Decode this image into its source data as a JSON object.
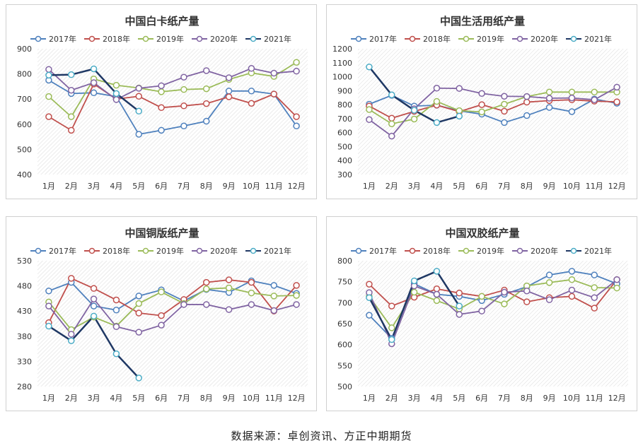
{
  "source": "数据来源：卓创资讯、方正中期期货",
  "months": [
    "1月",
    "2月",
    "3月",
    "4月",
    "5月",
    "6月",
    "7月",
    "8月",
    "9月",
    "10月",
    "11月",
    "12月"
  ],
  "series_colors": [
    "#4f81bd",
    "#c0504d",
    "#9bbb59",
    "#8064a2",
    "#1f3864"
  ],
  "series_outline_colors": [
    "#4f81bd",
    "#c0504d",
    "#9bbb59",
    "#8064a2",
    "#4bacc6"
  ],
  "chart_data": [
    {
      "type": "line",
      "title": "中国白卡纸产量",
      "ylim": [
        400,
        900
      ],
      "yticks": [
        400,
        500,
        600,
        700,
        800,
        900
      ],
      "grid": false,
      "legend": "top",
      "series": [
        {
          "name": "2017年",
          "values": [
            775,
            722,
            725,
            710,
            560,
            576,
            593,
            612,
            732,
            732,
            720,
            593
          ]
        },
        {
          "name": "2018年",
          "values": [
            630,
            576,
            760,
            700,
            711,
            666,
            673,
            682,
            709,
            683,
            720,
            630
          ]
        },
        {
          "name": "2019年",
          "values": [
            710,
            630,
            780,
            755,
            744,
            729,
            738,
            741,
            778,
            804,
            790,
            846
          ]
        },
        {
          "name": "2020年",
          "values": [
            818,
            735,
            765,
            698,
            743,
            753,
            787,
            813,
            785,
            822,
            803,
            811
          ]
        },
        {
          "name": "2021年",
          "values": [
            795,
            797,
            820,
            722,
            652,
            null,
            null,
            null,
            null,
            null,
            null,
            null
          ]
        }
      ]
    },
    {
      "type": "line",
      "title": "中国生活用纸产量",
      "ylim": [
        300,
        1200
      ],
      "yticks": [
        300,
        400,
        500,
        600,
        700,
        800,
        900,
        1000,
        1100,
        1200
      ],
      "grid": false,
      "legend": "top",
      "series": [
        {
          "name": "2017年",
          "values": [
            803,
            867,
            790,
            796,
            756,
            732,
            672,
            722,
            780,
            750,
            840,
            810
          ]
        },
        {
          "name": "2018年",
          "values": [
            790,
            703,
            752,
            797,
            750,
            800,
            753,
            818,
            829,
            835,
            825,
            820
          ]
        },
        {
          "name": "2019年",
          "values": [
            765,
            663,
            697,
            823,
            757,
            748,
            803,
            858,
            890,
            890,
            890,
            890
          ]
        },
        {
          "name": "2020年",
          "values": [
            693,
            575,
            770,
            918,
            916,
            880,
            860,
            858,
            846,
            848,
            835,
            925
          ]
        },
        {
          "name": "2021年",
          "values": [
            1070,
            870,
            760,
            672,
            718,
            null,
            null,
            null,
            null,
            null,
            null,
            null
          ]
        }
      ]
    },
    {
      "type": "line",
      "title": "中国铜版纸产量",
      "ylim": [
        280,
        530
      ],
      "yticks": [
        280,
        330,
        380,
        430,
        480,
        530
      ],
      "grid": false,
      "legend": "top",
      "series": [
        {
          "name": "2017年",
          "values": [
            470,
            487,
            440,
            432,
            460,
            472,
            450,
            473,
            467,
            490,
            481,
            465
          ]
        },
        {
          "name": "2018年",
          "values": [
            407,
            495,
            475,
            452,
            426,
            421,
            453,
            487,
            492,
            487,
            430,
            481
          ]
        },
        {
          "name": "2019年",
          "values": [
            448,
            393,
            418,
            400,
            445,
            468,
            445,
            474,
            476,
            466,
            460,
            461
          ]
        },
        {
          "name": "2020年",
          "values": [
            440,
            384,
            454,
            399,
            388,
            402,
            443,
            443,
            433,
            443,
            431,
            443
          ]
        },
        {
          "name": "2021年",
          "values": [
            400,
            371,
            420,
            345,
            297,
            null,
            null,
            null,
            null,
            null,
            null,
            null
          ]
        }
      ]
    },
    {
      "type": "line",
      "title": "中国双胶纸产量",
      "ylim": [
        500,
        800
      ],
      "yticks": [
        500,
        550,
        600,
        650,
        700,
        750,
        800
      ],
      "grid": false,
      "legend": "top",
      "series": [
        {
          "name": "2017年",
          "values": [
            670,
            615,
            745,
            720,
            715,
            705,
            720,
            738,
            766,
            775,
            766,
            745
          ]
        },
        {
          "name": "2018年",
          "values": [
            744,
            692,
            713,
            733,
            723,
            715,
            730,
            702,
            712,
            715,
            687,
            755
          ]
        },
        {
          "name": "2019年",
          "values": [
            715,
            640,
            725,
            705,
            685,
            715,
            697,
            740,
            748,
            755,
            736,
            735
          ]
        },
        {
          "name": "2020年",
          "values": [
            724,
            602,
            740,
            720,
            672,
            680,
            725,
            728,
            707,
            730,
            712,
            755
          ]
        },
        {
          "name": "2021年",
          "values": [
            712,
            612,
            752,
            775,
            692,
            null,
            null,
            null,
            null,
            null,
            null,
            null
          ]
        }
      ]
    }
  ]
}
